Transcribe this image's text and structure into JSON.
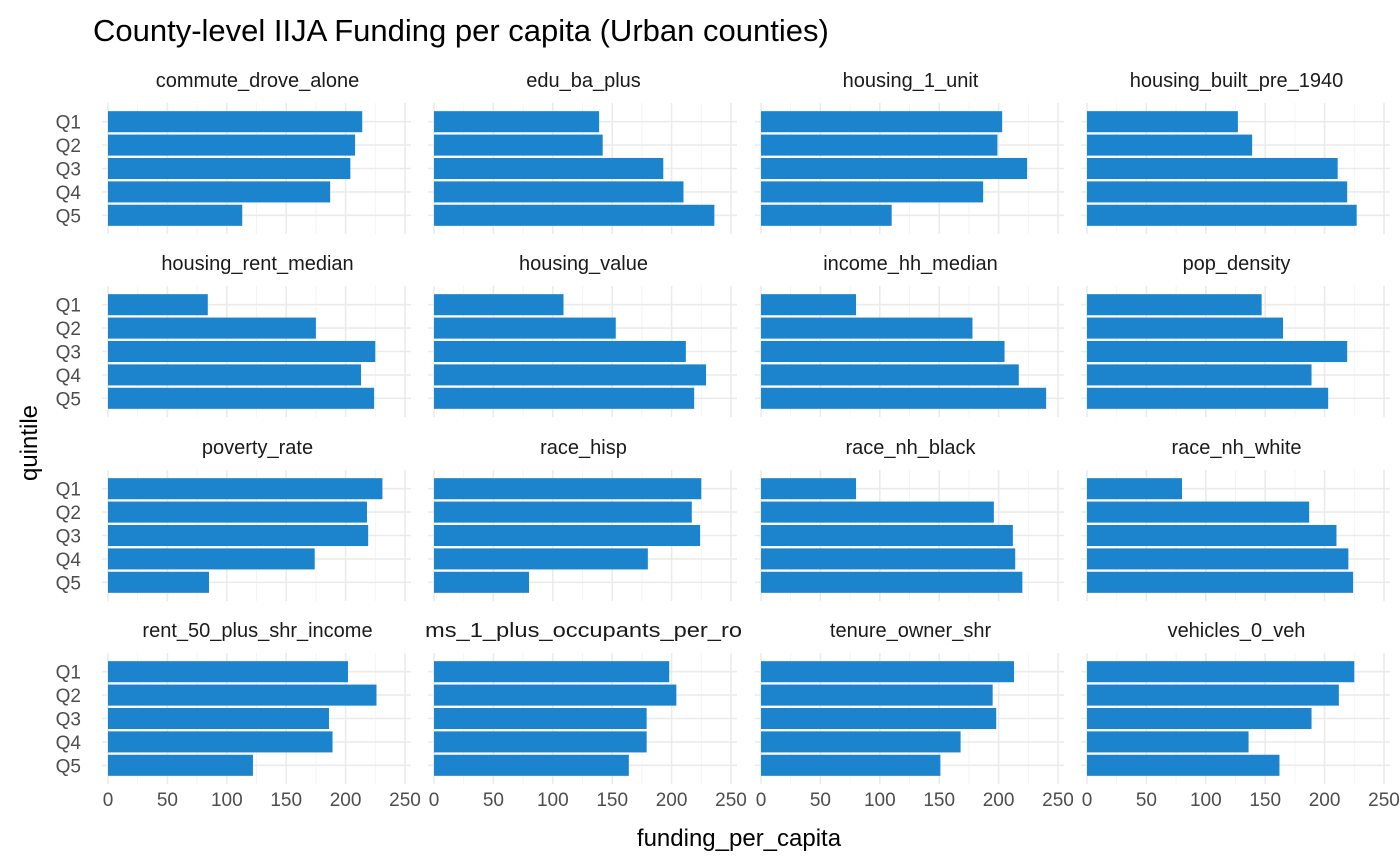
{
  "chart_data": {
    "type": "bar",
    "orientation": "horizontal",
    "facet_layout": "4x4",
    "title": "County-level IIJA Funding per capita (Urban counties)",
    "xlabel": "funding_per_capita",
    "ylabel": "quintile",
    "categories": [
      "Q1",
      "Q2",
      "Q3",
      "Q4",
      "Q5"
    ],
    "xlim": [
      0,
      250
    ],
    "xticks": [
      0,
      50,
      100,
      150,
      200,
      250
    ],
    "grid": true,
    "bar_color": "#1b84cc",
    "panels": [
      {
        "name": "commute_drove_alone",
        "values": [
          214,
          208,
          204,
          187,
          113
        ]
      },
      {
        "name": "edu_ba_plus",
        "values": [
          139,
          142,
          193,
          210,
          236
        ]
      },
      {
        "name": "housing_1_unit",
        "values": [
          203,
          199,
          224,
          187,
          110
        ]
      },
      {
        "name": "housing_built_pre_1940",
        "values": [
          127,
          139,
          211,
          219,
          227
        ]
      },
      {
        "name": "housing_rent_median",
        "values": [
          84,
          175,
          225,
          213,
          224
        ]
      },
      {
        "name": "housing_value",
        "values": [
          109,
          153,
          212,
          229,
          219
        ]
      },
      {
        "name": "income_hh_median",
        "values": [
          80,
          178,
          205,
          217,
          240
        ]
      },
      {
        "name": "pop_density",
        "values": [
          147,
          165,
          219,
          189,
          203
        ]
      },
      {
        "name": "poverty_rate",
        "values": [
          231,
          218,
          219,
          174,
          85
        ]
      },
      {
        "name": "race_hisp",
        "values": [
          225,
          217,
          224,
          180,
          80
        ]
      },
      {
        "name": "race_nh_black",
        "values": [
          80,
          196,
          212,
          214,
          220
        ]
      },
      {
        "name": "race_nh_white",
        "values": [
          80,
          187,
          210,
          220,
          224
        ]
      },
      {
        "name": "rent_50_plus_shr_income",
        "values": [
          202,
          226,
          186,
          189,
          122
        ]
      },
      {
        "name": "ms_1_plus_occupants_per_ro",
        "values": [
          198,
          204,
          179,
          179,
          164
        ]
      },
      {
        "name": "tenure_owner_shr",
        "values": [
          213,
          195,
          198,
          168,
          151
        ]
      },
      {
        "name": "vehicles_0_veh",
        "values": [
          225,
          212,
          189,
          136,
          162
        ]
      }
    ]
  }
}
